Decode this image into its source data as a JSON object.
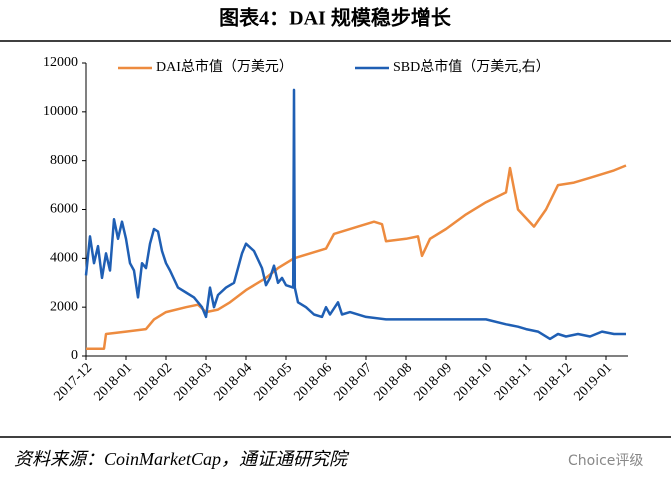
{
  "chart_data": {
    "type": "line",
    "title": "图表4：DAI 规模稳步增长",
    "source": "资料来源：CoinMarketCap，通证通研究院",
    "watermark": "Choice评级",
    "xlim": [
      0,
      13.55
    ],
    "ylim": [
      0,
      12000
    ],
    "yticks": [
      0,
      2000,
      4000,
      6000,
      8000,
      10000,
      12000
    ],
    "xticks": [
      {
        "value": 0,
        "label": "2017-12"
      },
      {
        "value": 1,
        "label": "2018-01"
      },
      {
        "value": 2,
        "label": "2018-02"
      },
      {
        "value": 3,
        "label": "2018-03"
      },
      {
        "value": 4,
        "label": "2018-04"
      },
      {
        "value": 5,
        "label": "2018-05"
      },
      {
        "value": 6,
        "label": "2018-06"
      },
      {
        "value": 7,
        "label": "2018-07"
      },
      {
        "value": 8,
        "label": "2018-08"
      },
      {
        "value": 9,
        "label": "2018-09"
      },
      {
        "value": 10,
        "label": "2018-10"
      },
      {
        "value": 11,
        "label": "2018-11"
      },
      {
        "value": 12,
        "label": "2018-12"
      },
      {
        "value": 13,
        "label": "2019-01"
      }
    ],
    "series": [
      {
        "name": "DAI总市值（万美元）",
        "color": "#ed8b3f",
        "x": [
          0,
          0.45,
          0.5,
          1,
          1.5,
          1.7,
          2,
          2.5,
          2.8,
          3,
          3.3,
          3.6,
          4,
          4.5,
          4.8,
          5.2,
          5.6,
          6,
          6.2,
          6.8,
          7.2,
          7.4,
          7.5,
          8,
          8.3,
          8.4,
          8.6,
          9,
          9.5,
          10,
          10.5,
          10.6,
          10.8,
          11.2,
          11.5,
          11.8,
          12.2,
          12.6,
          13.2,
          13.5
        ],
        "values": [
          300,
          300,
          900,
          1000,
          1100,
          1500,
          1800,
          2000,
          2100,
          1800,
          1900,
          2200,
          2700,
          3200,
          3600,
          4000,
          4200,
          4400,
          5000,
          5300,
          5500,
          5400,
          4700,
          4800,
          4900,
          4100,
          4800,
          5200,
          5800,
          6300,
          6700,
          7700,
          6000,
          5300,
          6000,
          7000,
          7100,
          7300,
          7600,
          7800
        ]
      },
      {
        "name": "SBD总市值（万美元,右）",
        "color": "#1f5fb4",
        "x": [
          0,
          0.1,
          0.2,
          0.3,
          0.4,
          0.5,
          0.6,
          0.7,
          0.8,
          0.9,
          1,
          1.1,
          1.2,
          1.3,
          1.4,
          1.5,
          1.6,
          1.7,
          1.8,
          1.9,
          2,
          2.1,
          2.3,
          2.5,
          2.7,
          2.9,
          3,
          3.1,
          3.2,
          3.3,
          3.5,
          3.7,
          3.9,
          4,
          4.2,
          4.4,
          4.5,
          4.6,
          4.7,
          4.8,
          4.9,
          5,
          5.18,
          5.2,
          5.22,
          5.3,
          5.5,
          5.7,
          5.9,
          6,
          6.1,
          6.3,
          6.4,
          6.6,
          7,
          7.5,
          8,
          8.5,
          9,
          9.5,
          10,
          10.5,
          10.8,
          11,
          11.3,
          11.6,
          11.8,
          12,
          12.3,
          12.6,
          12.9,
          13.2,
          13.5
        ],
        "values": [
          3300,
          4900,
          3800,
          4500,
          3200,
          4200,
          3500,
          5600,
          4800,
          5500,
          4800,
          3800,
          3500,
          2400,
          3800,
          3600,
          4600,
          5200,
          5100,
          4300,
          3800,
          3500,
          2800,
          2600,
          2400,
          2000,
          1600,
          2800,
          2000,
          2500,
          2800,
          3000,
          4200,
          4600,
          4300,
          3600,
          2900,
          3200,
          3700,
          3000,
          3200,
          2900,
          2800,
          10900,
          2800,
          2200,
          2000,
          1700,
          1600,
          2000,
          1700,
          2200,
          1700,
          1800,
          1600,
          1500,
          1500,
          1500,
          1500,
          1500,
          1500,
          1300,
          1200,
          1100,
          1000,
          700,
          900,
          800,
          900,
          800,
          1000,
          900,
          900
        ]
      }
    ]
  }
}
